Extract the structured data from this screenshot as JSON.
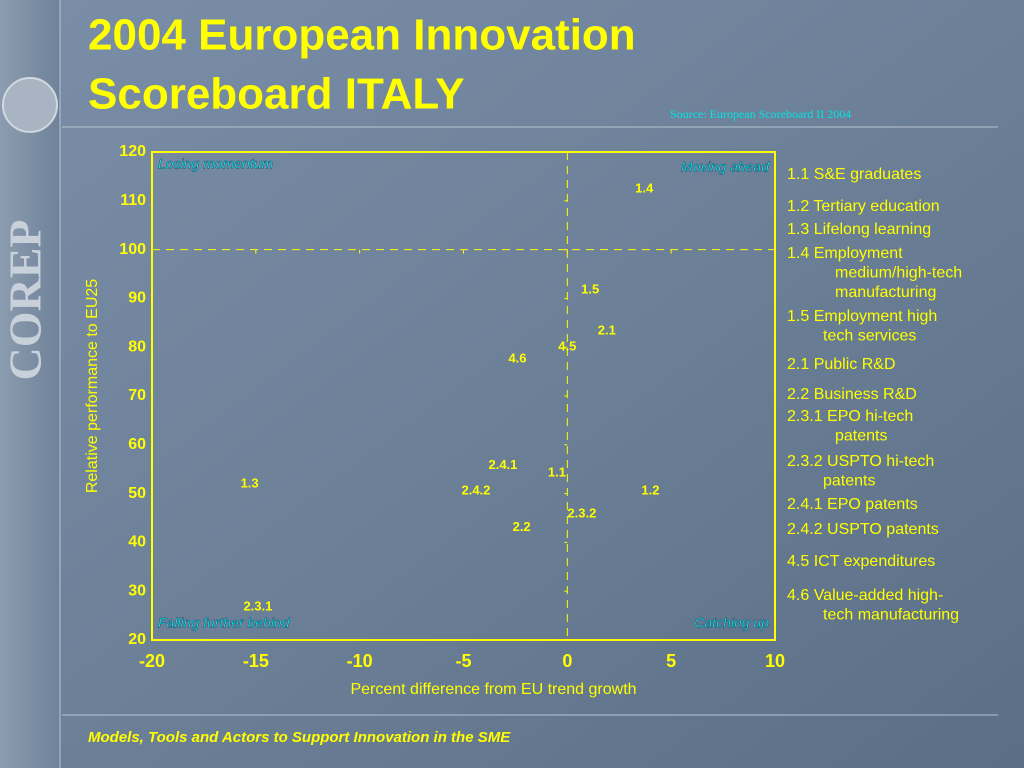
{
  "header": {
    "title": [
      "2004 European Innovation",
      "Scoreboard ITALY"
    ],
    "source": "Source: European Scoreboard II 2004"
  },
  "sidebar": {
    "logo_text": "COREP"
  },
  "chart_data": {
    "type": "scatter",
    "x_label": "Percent difference from EU trend growth",
    "y_label": "Relative performance to EU25",
    "xlim": [
      -20,
      10
    ],
    "xticks": [
      -20,
      -15,
      -10,
      -5,
      0,
      5,
      10
    ],
    "ylim": [
      20,
      120
    ],
    "yticks": [
      20,
      30,
      40,
      50,
      60,
      70,
      80,
      90,
      100,
      110,
      120
    ],
    "crosshair": {
      "x": 0,
      "y": 100
    },
    "quadrants": {
      "top_left": "Losing momentum",
      "top_right": "Moving ahead",
      "bottom_left": "Falling further behind",
      "bottom_right": "Catching up"
    },
    "color": "#ffff00",
    "point_labels": [
      "1.4",
      "1.5",
      "2.1",
      "4.5",
      "4.6",
      "2.4.1",
      "1.1",
      "1.3",
      "2.4.2",
      "1.2",
      "2.3.2",
      "2.2",
      "2.3.1"
    ],
    "x": [
      3.7,
      1.1,
      1.9,
      0.0,
      -2.4,
      -3.1,
      -0.5,
      -15.3,
      -4.4,
      4.0,
      0.7,
      -2.2,
      -14.9
    ],
    "values": [
      112.4,
      91.7,
      83.3,
      80.0,
      77.6,
      55.7,
      54.2,
      52.0,
      50.5,
      50.5,
      45.8,
      43.0,
      26.8
    ],
    "legend_items": [
      [
        "1.1 S&E graduates"
      ],
      [
        "1.2 Tertiary education"
      ],
      [
        "1.3 Lifelong learning"
      ],
      [
        "1.4 Employment",
        "medium/high-tech",
        "manufacturing"
      ],
      [
        "1.5 Employment high",
        "tech services"
      ],
      [
        "2.1 Public R&D"
      ],
      [
        "2.2 Business R&D"
      ],
      [
        "2.3.1 EPO hi-tech",
        "patents"
      ],
      [
        "2.3.2 USPTO hi-tech",
        "patents"
      ],
      [
        "2.4.1 EPO patents"
      ],
      [
        "2.4.2 USPTO patents"
      ],
      [
        "4.5 ICT expenditures"
      ],
      [
        "4.6 Value-added high-",
        "tech manufacturing"
      ]
    ]
  },
  "footer": {
    "text": "Models, Tools and Actors to Support Innovation in the SME"
  }
}
